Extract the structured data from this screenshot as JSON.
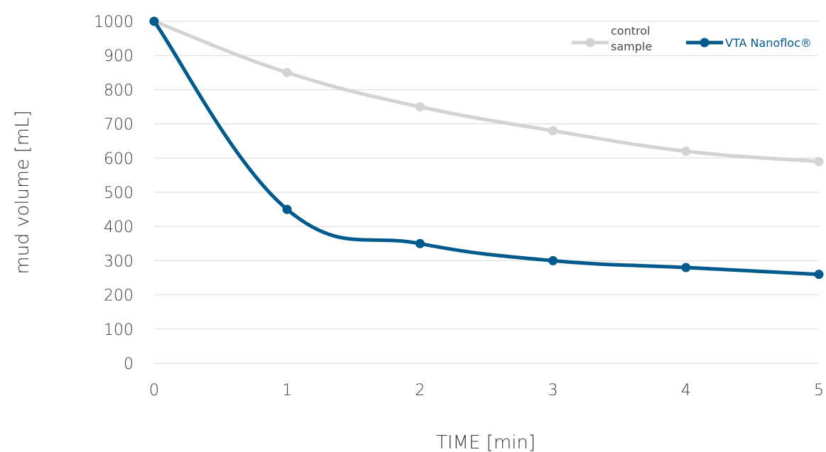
{
  "chart_data": {
    "type": "line",
    "title": "",
    "xlabel": "TIME [min]",
    "ylabel": "mud volume [mL]",
    "x": [
      0,
      1,
      2,
      3,
      4,
      5
    ],
    "x_tick_labels": [
      "0",
      "1",
      "2",
      "3",
      "4",
      "5"
    ],
    "y_tick_labels": [
      "0",
      "100",
      "200",
      "300",
      "400",
      "500",
      "600",
      "700",
      "800",
      "900",
      "1000"
    ],
    "xlim": [
      0,
      5
    ],
    "ylim": [
      0,
      1000
    ],
    "grid": "horizontal",
    "legend_position": "top-right",
    "series": [
      {
        "name_lines": [
          "control",
          "sample"
        ],
        "color": "#d3d3d3",
        "values": [
          1000,
          850,
          750,
          680,
          620,
          590
        ]
      },
      {
        "name": "VTA Nanofloc®",
        "color": "#005a8c",
        "values": [
          1000,
          450,
          350,
          300,
          280,
          260
        ]
      }
    ]
  }
}
